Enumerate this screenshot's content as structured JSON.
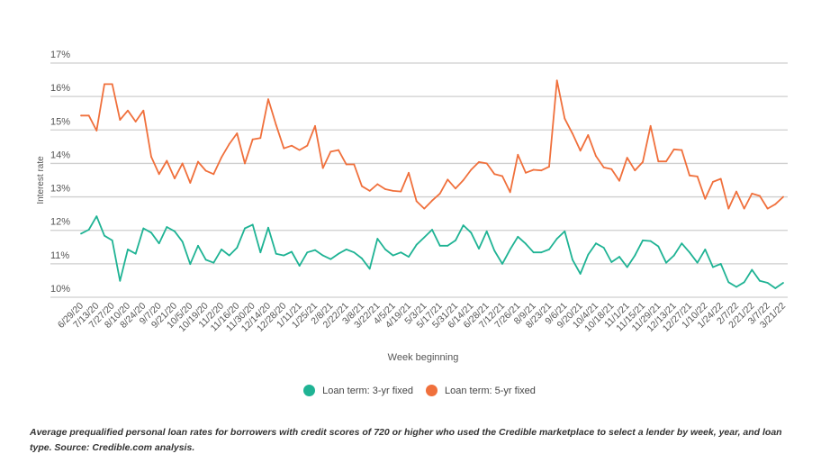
{
  "chart_data": {
    "type": "line",
    "xlabel": "Week beginning",
    "ylabel": "Interest rate",
    "ylim": [
      10,
      17
    ],
    "yticks": [
      "10%",
      "11%",
      "12%",
      "13%",
      "14%",
      "15%",
      "16%",
      "17%"
    ],
    "grid": true,
    "legend_placement": "bottom",
    "x_start": "6/29/20",
    "x_interval": "weekly",
    "xtick_labels": [
      "6/29/20",
      "7/13/20",
      "7/27/20",
      "8/10/20",
      "8/24/20",
      "9/7/20",
      "9/21/20",
      "10/5/20",
      "10/19/20",
      "11/2/20",
      "11/16/20",
      "11/30/20",
      "12/14/20",
      "12/28/20",
      "1/11/21",
      "1/25/21",
      "2/8/21",
      "2/22/21",
      "3/8/21",
      "3/22/21",
      "4/5/21",
      "4/19/21",
      "5/3/21",
      "5/17/21",
      "5/31/21",
      "6/14/21",
      "6/28/21",
      "7/12/21",
      "7/26/21",
      "8/9/21",
      "8/23/21",
      "9/6/21",
      "9/20/21",
      "10/4/21",
      "10/18/21",
      "11/1/21",
      "11/15/21",
      "11/29/21",
      "12/13/21",
      "12/27/21",
      "1/10/22",
      "1/24/22",
      "2/7/22",
      "2/21/22",
      "3/7/22",
      "3/21/22"
    ],
    "series": [
      {
        "name": "Loan term: 3-yr fixed",
        "color": "#1fb394",
        "values": [
          11.9,
          12.02,
          12.42,
          11.84,
          11.7,
          10.49,
          11.43,
          11.3,
          12.06,
          11.93,
          11.61,
          12.1,
          11.97,
          11.66,
          10.99,
          11.54,
          11.12,
          11.03,
          11.43,
          11.25,
          11.48,
          12.06,
          12.17,
          11.34,
          12.08,
          11.3,
          11.25,
          11.36,
          10.94,
          11.34,
          11.41,
          11.25,
          11.14,
          11.3,
          11.43,
          11.34,
          11.16,
          10.85,
          11.75,
          11.43,
          11.25,
          11.34,
          11.21,
          11.57,
          11.79,
          12.02,
          11.54,
          11.54,
          11.7,
          12.15,
          11.93,
          11.45,
          11.97,
          11.39,
          11.0,
          11.43,
          11.81,
          11.6,
          11.34,
          11.34,
          11.43,
          11.75,
          11.97,
          11.12,
          10.7,
          11.27,
          11.61,
          11.48,
          11.05,
          11.21,
          10.9,
          11.25,
          11.7,
          11.68,
          11.52,
          11.03,
          11.25,
          11.61,
          11.34,
          11.03,
          11.43,
          10.9,
          11.0,
          10.45,
          10.31,
          10.45,
          10.82,
          10.49,
          10.43,
          10.27,
          10.43
        ]
      },
      {
        "name": "Loan term: 5-yr fixed",
        "color": "#f0703c",
        "values": [
          15.43,
          15.43,
          14.98,
          16.37,
          16.37,
          15.3,
          15.58,
          15.25,
          15.58,
          14.2,
          13.68,
          14.08,
          13.55,
          14.0,
          13.42,
          14.05,
          13.78,
          13.68,
          14.18,
          14.58,
          14.9,
          14.0,
          14.72,
          14.76,
          15.92,
          15.15,
          14.45,
          14.53,
          14.4,
          14.53,
          15.12,
          13.86,
          14.35,
          14.4,
          13.97,
          13.97,
          13.32,
          13.18,
          13.38,
          13.23,
          13.18,
          13.16,
          13.72,
          12.87,
          12.65,
          12.89,
          13.1,
          13.52,
          13.25,
          13.5,
          13.81,
          14.04,
          14.0,
          13.68,
          13.62,
          13.14,
          14.26,
          13.72,
          13.81,
          13.79,
          13.9,
          16.48,
          15.34,
          14.89,
          14.38,
          14.85,
          14.22,
          13.88,
          13.83,
          13.48,
          14.17,
          13.79,
          14.04,
          15.12,
          14.06,
          14.06,
          14.42,
          14.4,
          13.64,
          13.61,
          12.94,
          13.45,
          13.54,
          12.65,
          13.16,
          12.65,
          13.1,
          13.03,
          12.65,
          12.78,
          13.0
        ]
      }
    ]
  },
  "legend": {
    "items": [
      {
        "label": "Loan term: 3-yr fixed",
        "color": "#1fb394"
      },
      {
        "label": "Loan term: 5-yr fixed",
        "color": "#f0703c"
      }
    ]
  },
  "caption": "Average prequalified personal loan rates for borrowers with credit scores of 720 or higher who used the Credible marketplace to select a lender by week, year, and loan type. Source: Credible.com analysis."
}
